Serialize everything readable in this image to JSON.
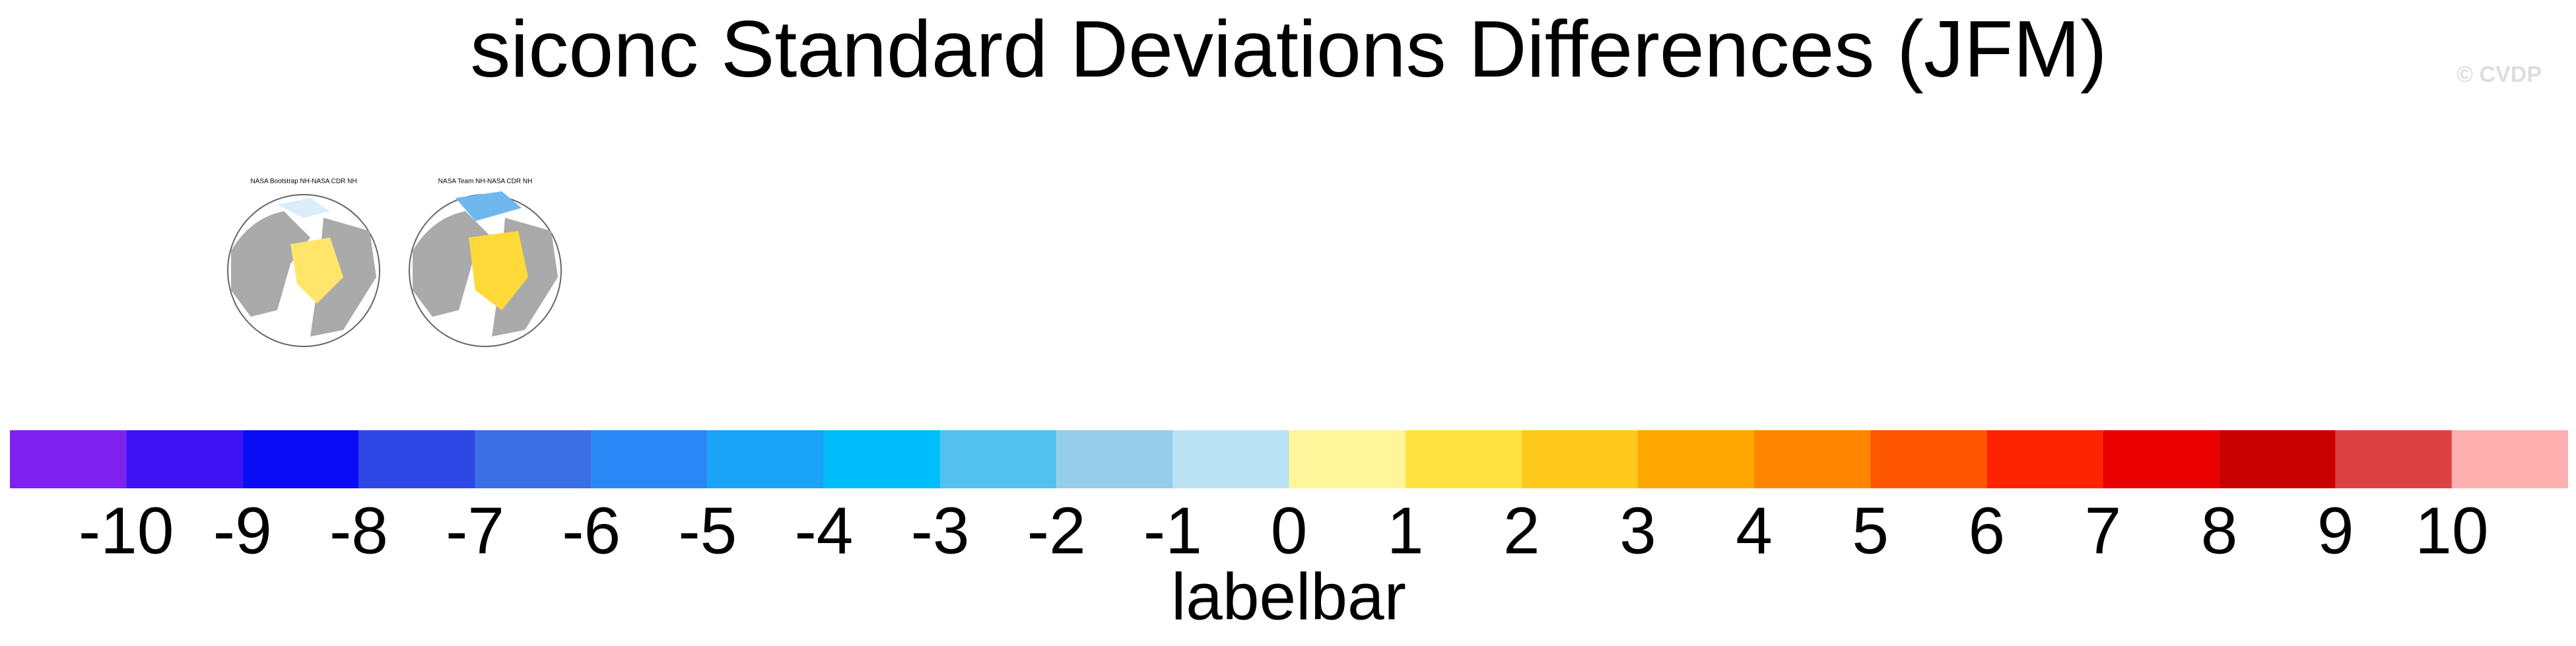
{
  "title": "siconc Standard Deviations Differences (JFM)",
  "watermark": "© CVDP",
  "panels": [
    {
      "title": "NASA Bootstrap NH-NASA CDR NH"
    },
    {
      "title": "NASA Team NH-NASA CDR NH"
    }
  ],
  "labelbar": {
    "title": "labelbar",
    "colors": [
      "#7f22ef",
      "#3f12f5",
      "#0a0cf5",
      "#2e48e6",
      "#3a6fe5",
      "#2a88f6",
      "#1ba3f8",
      "#00befc",
      "#52c1ef",
      "#96cdeb",
      "#bce2f5",
      "#fff69c",
      "#ffe340",
      "#ffc81c",
      "#ffa600",
      "#ff8400",
      "#ff5600",
      "#ff2400",
      "#ea0000",
      "#c90000",
      "#dd4242",
      "#ffb0b0"
    ],
    "labels": [
      -10,
      -9,
      -8,
      -7,
      -6,
      -5,
      -4,
      -3,
      -2,
      -1,
      0,
      1,
      2,
      3,
      4,
      5,
      6,
      7,
      8,
      9,
      10
    ]
  }
}
